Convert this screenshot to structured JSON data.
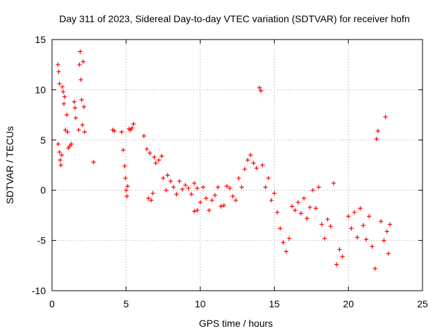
{
  "chart_data": {
    "type": "scatter",
    "title": "Day 311 of 2023, Sidereal Day-to-day VTEC variation (SDTVAR) for receiver hofn",
    "xlabel": "GPS time / hours",
    "ylabel": "SDTVAR / TECUs",
    "xlim": [
      0,
      25
    ],
    "ylim": [
      -10,
      15
    ],
    "xticks": [
      0,
      5,
      10,
      15,
      20,
      25
    ],
    "yticks": [
      -10,
      -5,
      0,
      5,
      10,
      15
    ],
    "xtick_labels": [
      "0",
      "5",
      "10",
      "15",
      "20",
      "25"
    ],
    "ytick_labels": [
      "-10",
      "-5",
      "0",
      "5",
      "10",
      "15"
    ],
    "grid": true,
    "marker": "+",
    "marker_color": "#ff0000",
    "series": [
      {
        "name": "SDTVAR",
        "points": [
          [
            0.4,
            12.5
          ],
          [
            0.45,
            11.8
          ],
          [
            0.5,
            10.6
          ],
          [
            0.42,
            4.6
          ],
          [
            0.5,
            3.8
          ],
          [
            0.55,
            3.0
          ],
          [
            0.6,
            2.5
          ],
          [
            0.65,
            3.5
          ],
          [
            0.7,
            10.3
          ],
          [
            0.75,
            9.8
          ],
          [
            0.8,
            8.6
          ],
          [
            0.85,
            9.3
          ],
          [
            0.9,
            6.0
          ],
          [
            1.0,
            7.5
          ],
          [
            1.05,
            5.8
          ],
          [
            1.1,
            4.2
          ],
          [
            1.2,
            4.4
          ],
          [
            1.3,
            4.6
          ],
          [
            1.5,
            8.8
          ],
          [
            1.55,
            8.2
          ],
          [
            1.6,
            7.2
          ],
          [
            1.8,
            6.0
          ],
          [
            1.85,
            12.5
          ],
          [
            1.9,
            13.8
          ],
          [
            1.95,
            11.0
          ],
          [
            2.0,
            9.0
          ],
          [
            2.05,
            6.5
          ],
          [
            2.1,
            12.8
          ],
          [
            2.15,
            8.3
          ],
          [
            2.2,
            5.8
          ],
          [
            2.8,
            2.8
          ],
          [
            4.1,
            6.0
          ],
          [
            4.2,
            5.9
          ],
          [
            4.7,
            5.8
          ],
          [
            4.8,
            4.0
          ],
          [
            4.9,
            2.4
          ],
          [
            4.95,
            1.2
          ],
          [
            5.0,
            0.0
          ],
          [
            5.05,
            -0.6
          ],
          [
            5.1,
            0.4
          ],
          [
            5.2,
            6.1
          ],
          [
            5.3,
            6.0
          ],
          [
            5.4,
            6.2
          ],
          [
            5.5,
            6.6
          ],
          [
            6.2,
            5.4
          ],
          [
            6.4,
            4.1
          ],
          [
            6.5,
            -0.8
          ],
          [
            6.6,
            3.7
          ],
          [
            6.7,
            -1.0
          ],
          [
            6.8,
            -0.3
          ],
          [
            6.9,
            3.3
          ],
          [
            7.0,
            2.7
          ],
          [
            7.2,
            3.0
          ],
          [
            7.4,
            3.4
          ],
          [
            7.5,
            1.2
          ],
          [
            7.7,
            0.0
          ],
          [
            7.8,
            1.5
          ],
          [
            8.0,
            0.9
          ],
          [
            8.2,
            0.3
          ],
          [
            8.4,
            -0.4
          ],
          [
            8.6,
            0.9
          ],
          [
            8.8,
            0.1
          ],
          [
            9.0,
            0.5
          ],
          [
            9.2,
            0.2
          ],
          [
            9.4,
            -0.4
          ],
          [
            9.6,
            0.7
          ],
          [
            9.8,
            0.2
          ],
          [
            9.6,
            -2.1
          ],
          [
            9.8,
            -2.0
          ],
          [
            10.0,
            -1.2
          ],
          [
            10.2,
            0.3
          ],
          [
            10.4,
            -0.8
          ],
          [
            10.6,
            -2.0
          ],
          [
            10.8,
            -1.0
          ],
          [
            11.0,
            -0.5
          ],
          [
            11.2,
            0.3
          ],
          [
            11.4,
            -1.6
          ],
          [
            11.6,
            -1.5
          ],
          [
            11.8,
            0.4
          ],
          [
            12.0,
            0.2
          ],
          [
            12.2,
            -0.6
          ],
          [
            12.4,
            -1.0
          ],
          [
            12.6,
            1.2
          ],
          [
            12.8,
            0.3
          ],
          [
            13.0,
            2.1
          ],
          [
            13.2,
            3.0
          ],
          [
            13.4,
            3.5
          ],
          [
            13.6,
            2.7
          ],
          [
            13.8,
            2.2
          ],
          [
            14.0,
            10.2
          ],
          [
            14.1,
            9.9
          ],
          [
            14.2,
            2.5
          ],
          [
            14.4,
            0.3
          ],
          [
            14.6,
            1.2
          ],
          [
            14.8,
            -1.0
          ],
          [
            15.0,
            -0.3
          ],
          [
            15.2,
            -2.2
          ],
          [
            15.4,
            -3.8
          ],
          [
            15.6,
            -5.2
          ],
          [
            15.8,
            -6.1
          ],
          [
            16.0,
            -4.8
          ],
          [
            16.2,
            -1.6
          ],
          [
            16.4,
            -2.0
          ],
          [
            16.6,
            -1.2
          ],
          [
            16.8,
            -2.3
          ],
          [
            17.0,
            -0.8
          ],
          [
            17.2,
            -2.8
          ],
          [
            17.4,
            -1.7
          ],
          [
            17.6,
            0.0
          ],
          [
            17.8,
            -1.8
          ],
          [
            18.0,
            0.3
          ],
          [
            18.2,
            -3.4
          ],
          [
            18.4,
            -4.8
          ],
          [
            18.6,
            -2.9
          ],
          [
            18.8,
            -3.6
          ],
          [
            19.0,
            0.7
          ],
          [
            19.2,
            -7.4
          ],
          [
            19.4,
            -5.9
          ],
          [
            19.6,
            -6.6
          ],
          [
            20.0,
            -2.6
          ],
          [
            20.2,
            -3.8
          ],
          [
            20.4,
            -2.2
          ],
          [
            20.6,
            -4.7
          ],
          [
            20.8,
            -1.8
          ],
          [
            21.0,
            -3.5
          ],
          [
            21.2,
            -4.9
          ],
          [
            21.4,
            -2.6
          ],
          [
            21.6,
            -5.6
          ],
          [
            21.8,
            -7.8
          ],
          [
            21.9,
            5.1
          ],
          [
            22.0,
            5.9
          ],
          [
            22.2,
            -3.1
          ],
          [
            22.4,
            -5.0
          ],
          [
            22.5,
            7.3
          ],
          [
            22.6,
            -4.1
          ],
          [
            22.7,
            -6.3
          ],
          [
            22.8,
            -3.4
          ]
        ]
      }
    ]
  }
}
